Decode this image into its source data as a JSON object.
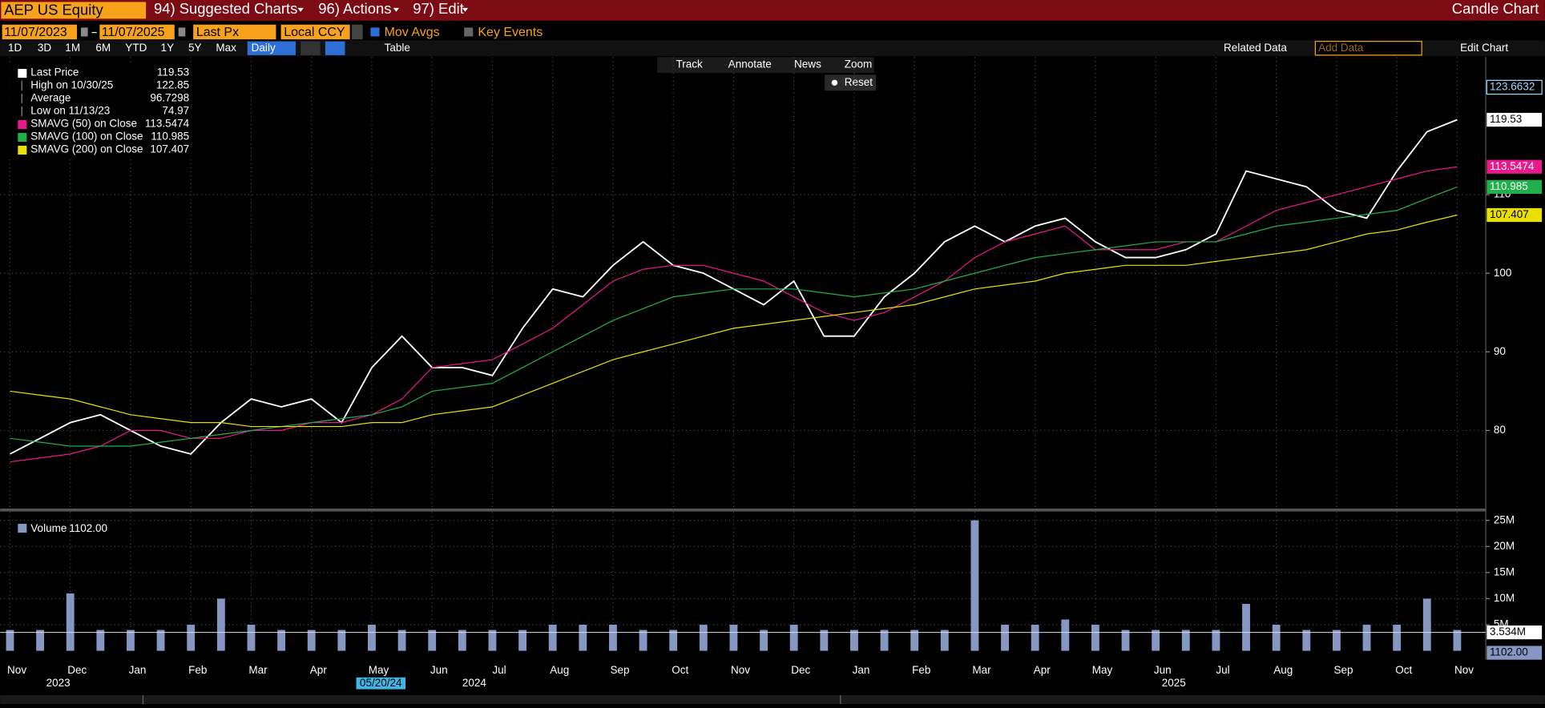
{
  "header": {
    "ticker": "AEP US Equity",
    "menus": [
      "94) Suggested Charts",
      "96) Actions",
      "97) Edit"
    ],
    "chart_kind": "Candle Chart"
  },
  "controls": {
    "start_date": "11/07/2023",
    "end_date": "11/07/2025",
    "field": "Last Px",
    "currency": "Local CCY",
    "toggles": [
      "Mov Avgs",
      "Key Events"
    ],
    "periods": [
      "1D",
      "3D",
      "1M",
      "6M",
      "YTD",
      "1Y",
      "5Y",
      "Max"
    ],
    "frequency": "Daily",
    "table": "Table",
    "related": "Related Data",
    "add_data": "Add Data",
    "edit": "Edit Chart"
  },
  "tools": [
    "Track",
    "Annotate",
    "News",
    "Zoom"
  ],
  "reset": "Reset",
  "chart_data": [
    {
      "type": "line",
      "categories": [
        "Nov",
        null,
        "Dec",
        null,
        "Jan",
        null,
        "Feb",
        null,
        "Mar",
        null,
        "Apr",
        null,
        "May",
        null,
        "Jun",
        null,
        "Jul",
        null,
        "Aug",
        null,
        "Sep",
        null,
        "Oct",
        null,
        "Nov",
        null,
        "Dec",
        null,
        "Jan",
        null,
        "Feb",
        null,
        "Mar",
        null,
        "Apr",
        null,
        "May",
        null,
        "Jun",
        null,
        "Jul",
        null,
        "Aug",
        null,
        "Sep",
        null,
        "Oct",
        null,
        "Nov"
      ],
      "years": [
        "2023",
        "2024",
        "2025"
      ],
      "cursor_date": "05/20/24",
      "series": [
        {
          "name": "Last Price",
          "color": "#ffffff",
          "values": [
            77,
            79,
            81,
            82,
            80,
            78,
            77,
            81,
            84,
            83,
            84,
            81,
            88,
            92,
            88,
            88,
            87,
            93,
            98,
            97,
            101,
            104,
            101,
            100,
            98,
            96,
            99,
            92,
            92,
            97,
            100,
            104,
            106,
            104,
            106,
            107,
            104,
            102,
            102,
            103,
            105,
            113,
            112,
            111,
            108,
            107,
            113,
            118,
            119.53
          ]
        },
        {
          "name": "SMAVG (50)  on Close",
          "color": "#e8198b",
          "values": [
            76,
            76.5,
            77,
            78,
            80,
            80,
            79,
            79,
            80,
            80,
            81,
            81,
            82,
            84,
            88,
            88.5,
            89,
            91,
            93,
            96,
            99,
            100.5,
            101,
            101,
            100,
            99,
            97,
            95,
            94,
            95,
            97,
            99,
            102,
            104,
            105,
            106,
            103,
            103,
            103,
            104,
            104,
            106,
            108,
            109,
            110,
            111,
            112,
            113,
            113.5474
          ]
        },
        {
          "name": "SMAVG (100)  on Close",
          "color": "#1fb04a",
          "values": [
            79,
            78.5,
            78,
            78,
            78,
            78.5,
            79,
            79.5,
            80,
            80.5,
            81,
            81.5,
            82,
            83,
            85,
            85.5,
            86,
            88,
            90,
            92,
            94,
            95.5,
            97,
            97.5,
            98,
            98,
            98,
            97.5,
            97,
            97.5,
            98,
            99,
            100,
            101,
            102,
            102.5,
            103,
            103.5,
            104,
            104,
            104,
            105,
            106,
            106.5,
            107,
            107.5,
            108,
            109.5,
            110.985
          ]
        },
        {
          "name": "SMAVG (200)  on Close",
          "color": "#e8e000",
          "values": [
            85,
            84.5,
            84,
            83,
            82,
            81.5,
            81,
            81,
            80.5,
            80.5,
            80.5,
            80.5,
            81,
            81,
            82,
            82.5,
            83,
            84.5,
            86,
            87.5,
            89,
            90,
            91,
            92,
            93,
            93.5,
            94,
            94.5,
            95,
            95.5,
            96,
            97,
            98,
            98.5,
            99,
            100,
            100.5,
            101,
            101,
            101,
            101.5,
            102,
            102.5,
            103,
            104,
            105,
            105.5,
            106.5,
            107.407
          ]
        }
      ],
      "stats": [
        {
          "label": "High on 10/30/25",
          "value": 122.85
        },
        {
          "label": "Average",
          "value": 96.7298
        },
        {
          "label": "Low on 11/13/23",
          "value": 74.97
        }
      ],
      "crosshair_value": 123.6632,
      "ylim": [
        70,
        127.5
      ],
      "yticks": [
        80,
        90,
        100,
        110
      ],
      "grid": true
    },
    {
      "type": "bar",
      "name": "Volume",
      "color": "#8797c4",
      "values": [
        4,
        4,
        11,
        4,
        4,
        4,
        5,
        10,
        5,
        4,
        4,
        4,
        5,
        4,
        4,
        4,
        4,
        4,
        5,
        5,
        5,
        4,
        4,
        5,
        5,
        4,
        5,
        4,
        4,
        4,
        4,
        4,
        25,
        5,
        5,
        6,
        5,
        4,
        4,
        4,
        4,
        9,
        5,
        4,
        4,
        5,
        5,
        10,
        4
      ],
      "last": {
        "value": 1102,
        "label": "1102.00"
      },
      "average": {
        "value": 3.534,
        "label": "3.534M"
      },
      "ylim": [
        0,
        26.6
      ],
      "yticks": [
        {
          "value": 5,
          "label": "5M"
        },
        {
          "value": 10,
          "label": "10M"
        },
        {
          "value": 15,
          "label": "15M"
        },
        {
          "value": 20,
          "label": "20M"
        },
        {
          "value": 25,
          "label": "25M"
        }
      ],
      "grid": true
    }
  ]
}
